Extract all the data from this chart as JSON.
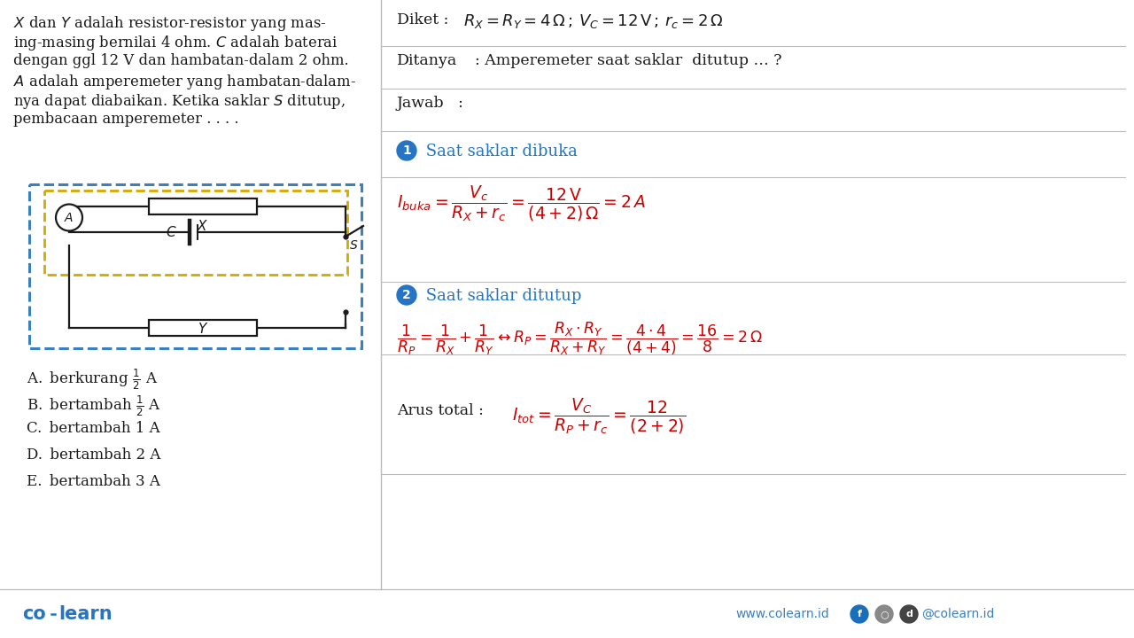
{
  "bg_color": "#ffffff",
  "text_color": "#1a1a1a",
  "red_color": "#cc0000",
  "blue_color": "#2575c4",
  "divider_color": "#bbbbbb",
  "problem_text_line1": "$X$ dan $Y$ adalah resistor-resistor yang mas-",
  "problem_text_line2": "ing-masing bernilai 4 ohm. $C$ adalah baterai",
  "problem_text_line3": "dengan ggl 12 V dan hambatan-dalam 2 ohm.",
  "problem_text_line4": "$A$ adalah amperemeter yang hambatan-dalam-",
  "problem_text_line5": "nya dapat diabaikan. Ketika saklar $S$ ditutup,",
  "problem_text_line6": "pembacaan amperemeter . . . .",
  "choice_A": "A. berkurang ½ A",
  "choice_B": "B. bertambah ½ A",
  "choice_C": "C. bertambah 1 A",
  "choice_D": "D. bertambah 2 A",
  "choice_E": "E. bertambah 3 A",
  "diket_label": "Diket :",
  "diket_math": "$R_X = R_Y = 4\\,\\Omega\\,;\\,V_C = 12\\,\\mathrm{V}\\,;\\,r_c = 2\\,\\Omega$",
  "ditanya_label": "Ditanya",
  "ditanya_text": ": Amperemeter saat saklar  ditutup … ?",
  "jawab_label": "Jawab   :",
  "step1_num": "1",
  "step1_text": " Saat saklar dibuka",
  "ibuka_math": "$I_{buka} = \\dfrac{V_c}{R_X + r_c} = \\dfrac{12\\,\\mathrm{V}}{(4+2)\\,\\Omega} = 2\\,A$",
  "step2_num": "2",
  "step2_text": " Saat saklar ditutup",
  "rp_math": "$\\dfrac{1}{R_P} = \\dfrac{1}{R_X} + \\dfrac{1}{R_Y} \\leftrightarrow R_P = \\dfrac{R_X \\cdot R_Y}{R_X + R_Y} = \\dfrac{4 \\cdot 4}{(4+4)} = \\dfrac{16}{8} = 2\\,\\Omega$",
  "arus_label": "Arus total :",
  "itot_math": "$I_{tot} = \\dfrac{V_C}{R_P + r_c} = \\dfrac{12}{(2+2)}$",
  "footer_colearn": "co learn",
  "footer_url": "www.colearn.id",
  "footer_social": "@colearn.id"
}
